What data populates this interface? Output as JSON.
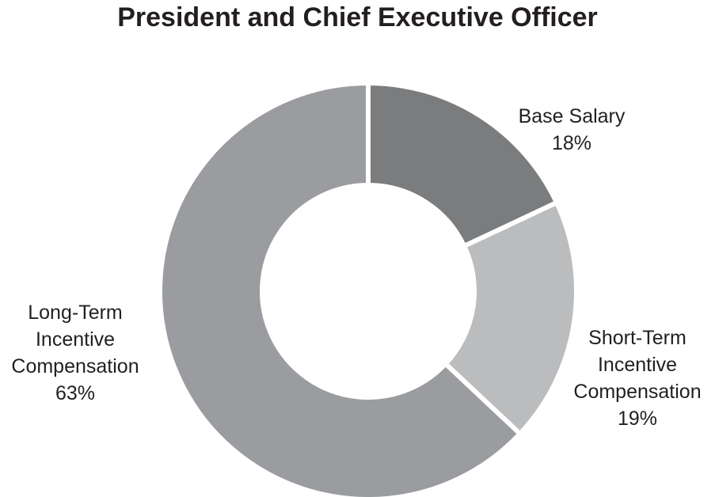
{
  "chart_data": {
    "type": "pie",
    "variant": "donut",
    "title": "President and Chief Executive Officer",
    "slices": [
      {
        "label": "Base Salary",
        "label_lines": [
          "Base Salary"
        ],
        "value": 18,
        "value_label": "18%",
        "color": "#7b7c7e"
      },
      {
        "label": "Short-Term Incentive Compensation",
        "label_lines": [
          "Short-Term",
          "Incentive",
          "Compensation"
        ],
        "value": 19,
        "value_label": "19%",
        "color": "#bbbcbe"
      },
      {
        "label": "Long-Term Incentive Compensation",
        "label_lines": [
          "Long-Term",
          "Incentive",
          "Compensation"
        ],
        "value": 63,
        "value_label": "63%",
        "color": "#9a9c9f"
      }
    ]
  }
}
